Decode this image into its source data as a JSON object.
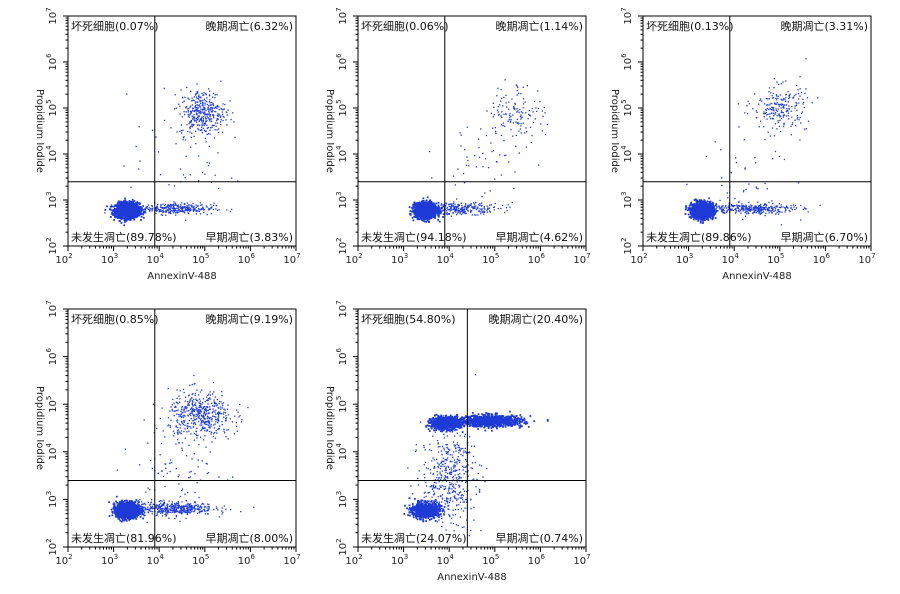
{
  "chart_data": [
    {
      "type": "scatter",
      "xlabel": "AnnexinV-488",
      "ylabel": "Propidium Iodide",
      "x_scale": "log",
      "y_scale": "log",
      "xlim": [
        100,
        10000000
      ],
      "ylim": [
        100,
        10000000
      ],
      "gates": {
        "x": 8000,
        "y": 2500
      },
      "quadrants": {
        "ul": "坏死细胞(0.07%)",
        "ur": "晚期凋亡(6.32%)",
        "ll": "未发生凋亡(89.78%)",
        "lr": "早期凋亡(3.83%)"
      },
      "populations": [
        {
          "x": 2000,
          "y": 600,
          "sx": 0.13,
          "sy": 0.08,
          "n": 1400
        },
        {
          "x": 20000,
          "y": 650,
          "sx": 0.45,
          "sy": 0.06,
          "n": 320
        },
        {
          "x": 90000,
          "y": 80000,
          "sx": 0.25,
          "sy": 0.25,
          "n": 380
        },
        {
          "x": 30000,
          "y": 5000,
          "sx": 0.6,
          "sy": 0.45,
          "n": 40
        }
      ]
    },
    {
      "type": "scatter",
      "xlabel": "",
      "ylabel": "Propidium Iodide",
      "x_scale": "log",
      "y_scale": "log",
      "xlim": [
        100,
        10000000
      ],
      "ylim": [
        100,
        10000000
      ],
      "gates": {
        "x": 8000,
        "y": 2500
      },
      "quadrants": {
        "ul": "坏死细胞(0.06%)",
        "ur": "晚期凋亡(1.14%)",
        "ll": "未发生凋亡(94.18%)",
        "lr": "早期凋亡(4.62%)"
      },
      "populations": [
        {
          "x": 3000,
          "y": 600,
          "sx": 0.12,
          "sy": 0.08,
          "n": 1400
        },
        {
          "x": 20000,
          "y": 650,
          "sx": 0.4,
          "sy": 0.06,
          "n": 250
        },
        {
          "x": 300000,
          "y": 80000,
          "sx": 0.3,
          "sy": 0.3,
          "n": 130
        },
        {
          "x": 60000,
          "y": 8000,
          "sx": 0.5,
          "sy": 0.5,
          "n": 50
        }
      ]
    },
    {
      "type": "scatter",
      "xlabel": "AnnexinV-488",
      "ylabel": "Propidium Iodide",
      "x_scale": "log",
      "y_scale": "log",
      "xlim": [
        100,
        10000000
      ],
      "ylim": [
        100,
        10000000
      ],
      "gates": {
        "x": 8000,
        "y": 2500
      },
      "quadrants": {
        "ul": "坏死细胞(0.13%)",
        "ur": "晚期凋亡(3.31%)",
        "ll": "未发生凋亡(89.86%)",
        "lr": "早期凋亡(6.70%)"
      },
      "populations": [
        {
          "x": 2000,
          "y": 600,
          "sx": 0.12,
          "sy": 0.08,
          "n": 1400
        },
        {
          "x": 25000,
          "y": 650,
          "sx": 0.45,
          "sy": 0.06,
          "n": 320
        },
        {
          "x": 100000,
          "y": 100000,
          "sx": 0.3,
          "sy": 0.25,
          "n": 220
        },
        {
          "x": 20000,
          "y": 5000,
          "sx": 0.5,
          "sy": 0.5,
          "n": 40
        }
      ]
    },
    {
      "type": "scatter",
      "xlabel": "",
      "ylabel": "Propidium Iodide",
      "x_scale": "log",
      "y_scale": "log",
      "xlim": [
        100,
        10000000
      ],
      "ylim": [
        100,
        10000000
      ],
      "gates": {
        "x": 8000,
        "y": 2500
      },
      "quadrants": {
        "ul": "坏死细胞(0.85%)",
        "ur": "晚期凋亡(9.19%)",
        "ll": "未发生凋亡(81.96%)",
        "lr": "早期凋亡(8.00%)"
      },
      "populations": [
        {
          "x": 2000,
          "y": 600,
          "sx": 0.12,
          "sy": 0.08,
          "n": 1400
        },
        {
          "x": 20000,
          "y": 650,
          "sx": 0.45,
          "sy": 0.07,
          "n": 450
        },
        {
          "x": 80000,
          "y": 60000,
          "sx": 0.35,
          "sy": 0.25,
          "n": 480
        },
        {
          "x": 30000,
          "y": 5000,
          "sx": 0.5,
          "sy": 0.5,
          "n": 90
        }
      ]
    },
    {
      "type": "scatter",
      "xlabel": "AnnexinV-488",
      "ylabel": "Propidium Iodide",
      "x_scale": "log",
      "y_scale": "log",
      "xlim": [
        100,
        10000000
      ],
      "ylim": [
        100,
        10000000
      ],
      "gates": {
        "x": 25000,
        "y": 2500
      },
      "quadrants": {
        "ul": "坏死细胞(54.80%)",
        "ur": "晚期凋亡(20.40%)",
        "ll": "未发生凋亡(24.07%)",
        "lr": "早期凋亡(0.74%)"
      },
      "populations": [
        {
          "x": 8000,
          "y": 40000,
          "sx": 0.15,
          "sy": 0.06,
          "n": 1100
        },
        {
          "x": 80000,
          "y": 45000,
          "sx": 0.35,
          "sy": 0.06,
          "n": 900
        },
        {
          "x": 3000,
          "y": 600,
          "sx": 0.15,
          "sy": 0.08,
          "n": 700
        },
        {
          "x": 10000,
          "y": 3000,
          "sx": 0.3,
          "sy": 0.5,
          "n": 450
        }
      ]
    }
  ]
}
